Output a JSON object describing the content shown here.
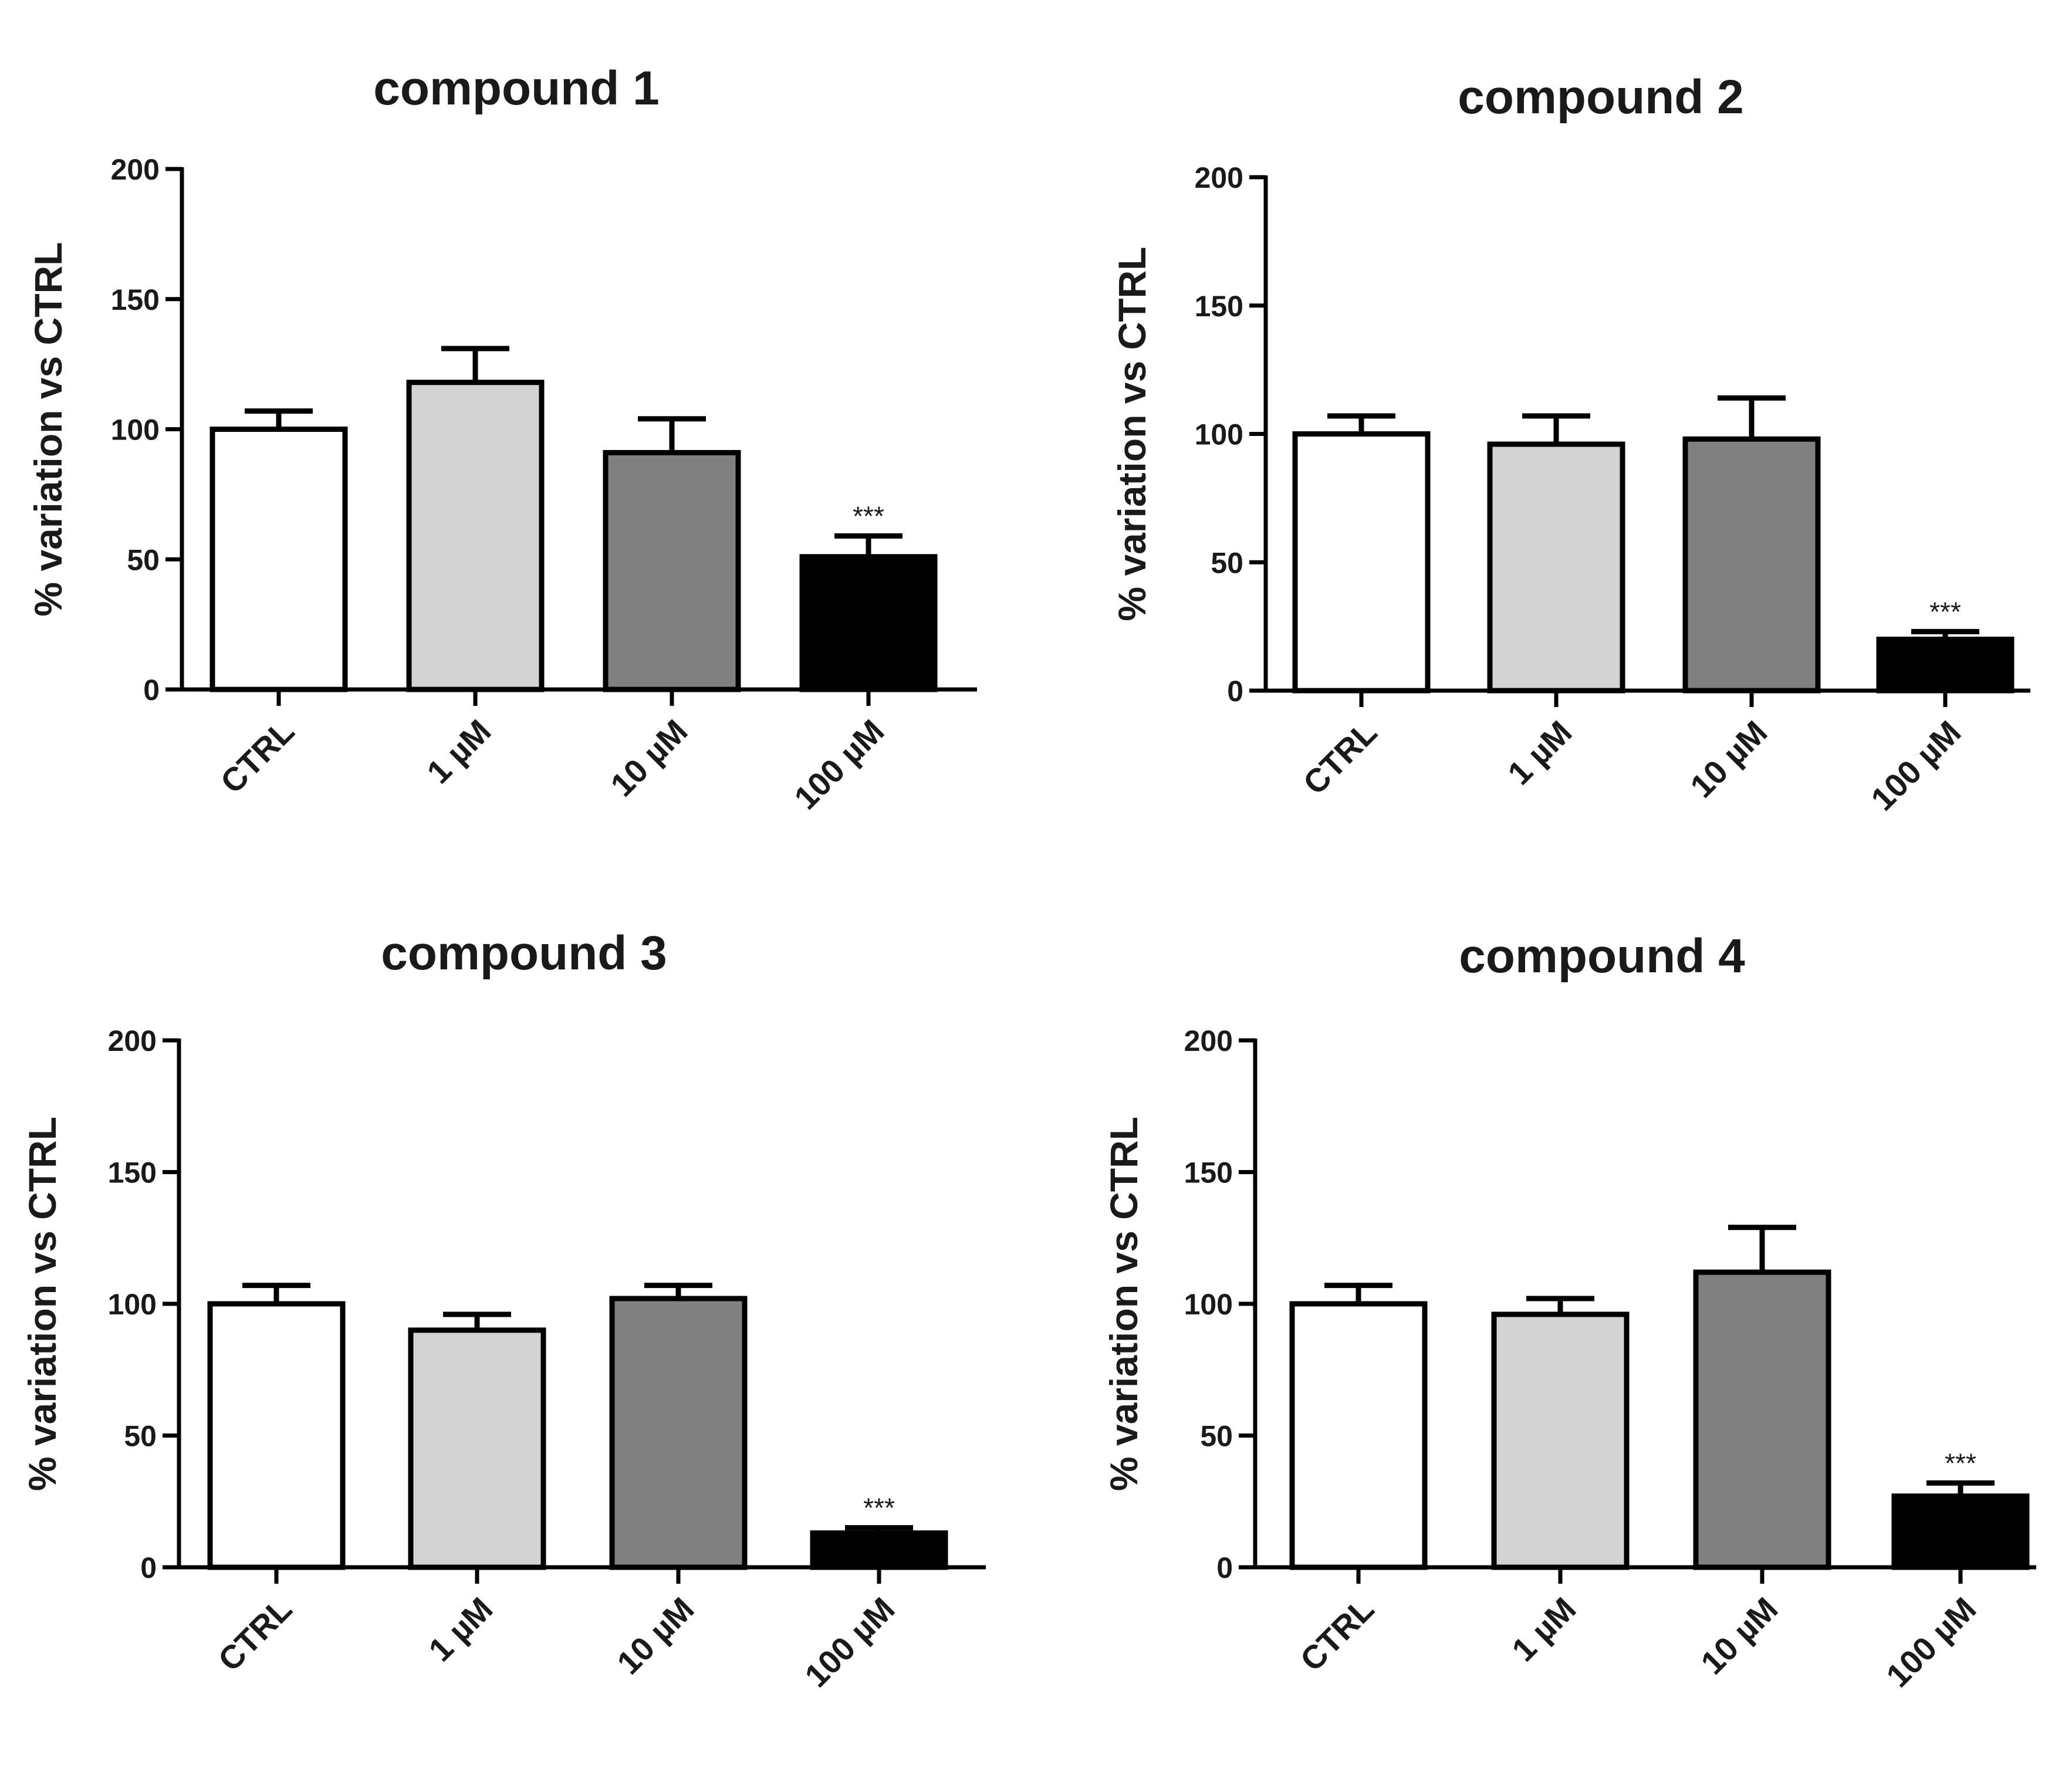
{
  "chart_data": [
    {
      "type": "bar",
      "title": "compound 1",
      "xlabel": "",
      "ylabel": "% variation vs CTRL",
      "ylim": [
        0,
        200
      ],
      "yticks": [
        0,
        50,
        100,
        150,
        200
      ],
      "categories": [
        "CTRL",
        "1 µM",
        "10 µM",
        "100 µM"
      ],
      "values": [
        100,
        118,
        91,
        51
      ],
      "errors": [
        7,
        13,
        13,
        8
      ],
      "significance": [
        "",
        "",
        "",
        "***"
      ],
      "fills": [
        "#ffffff",
        "#d3d3d3",
        "#808080",
        "#000000"
      ]
    },
    {
      "type": "bar",
      "title": "compound 2",
      "xlabel": "",
      "ylabel": "% variation vs CTRL",
      "ylim": [
        0,
        200
      ],
      "yticks": [
        0,
        50,
        100,
        150,
        200
      ],
      "categories": [
        "CTRL",
        "1 µM",
        "10 µM",
        "100 µM"
      ],
      "values": [
        100,
        96,
        98,
        20
      ],
      "errors": [
        7,
        11,
        16,
        3
      ],
      "significance": [
        "",
        "",
        "",
        "***"
      ],
      "fills": [
        "#ffffff",
        "#d3d3d3",
        "#808080",
        "#000000"
      ]
    },
    {
      "type": "bar",
      "title": "compound 3",
      "xlabel": "",
      "ylabel": "% variation vs CTRL",
      "ylim": [
        0,
        200
      ],
      "yticks": [
        0,
        50,
        100,
        150,
        200
      ],
      "categories": [
        "CTRL",
        "1 µM",
        "10 µM",
        "100 µM"
      ],
      "values": [
        100,
        90,
        102,
        13
      ],
      "errors": [
        7,
        6,
        5,
        2
      ],
      "significance": [
        "",
        "",
        "",
        "***"
      ],
      "fills": [
        "#ffffff",
        "#d3d3d3",
        "#808080",
        "#000000"
      ]
    },
    {
      "type": "bar",
      "title": "compound 4",
      "xlabel": "",
      "ylabel": "% variation vs CTRL",
      "ylim": [
        0,
        200
      ],
      "yticks": [
        0,
        50,
        100,
        150,
        200
      ],
      "categories": [
        "CTRL",
        "1 µM",
        "10 µM",
        "100 µM"
      ],
      "values": [
        100,
        96,
        112,
        27
      ],
      "errors": [
        7,
        6,
        17,
        5
      ],
      "significance": [
        "",
        "",
        "",
        "***"
      ],
      "fills": [
        "#ffffff",
        "#d3d3d3",
        "#808080",
        "#000000"
      ]
    }
  ]
}
